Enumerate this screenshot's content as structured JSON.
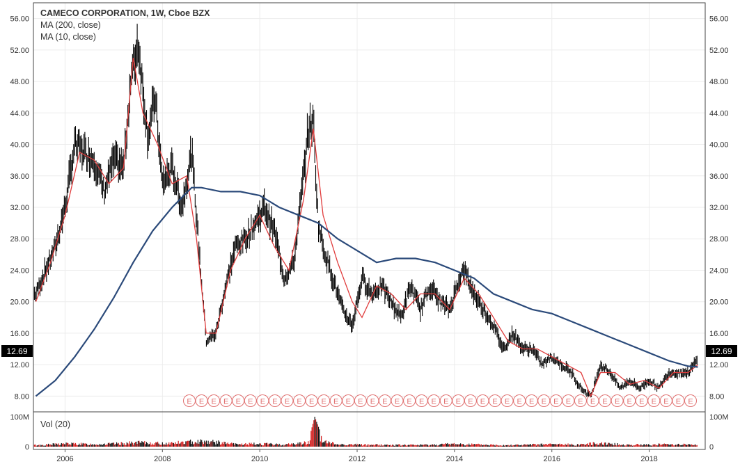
{
  "header": {
    "title": "CAMECO CORPORATION, 1W, Cboe BZX",
    "indicators": [
      "MA (200, close)",
      "MA (10, close)"
    ]
  },
  "price_badge": "12.69",
  "volume_pane": {
    "label": "Vol (20)",
    "ticks": [
      "100M",
      "0"
    ]
  },
  "earnings_marker_label": "E",
  "earnings_marker_count": 42,
  "colors": {
    "background": "#ffffff",
    "grid": "#ececec",
    "price_bars": "#000000",
    "ma200": "#2b4a7a",
    "ma10": "#e03b3b",
    "volume_up": "#111111",
    "volume_down": "#d11a1a",
    "earnings_marker": "#e07070",
    "badge_bg": "#000000",
    "badge_text": "#ffffff"
  },
  "chart_data": {
    "type": "line",
    "title": "CAMECO CORPORATION, 1W, Cboe BZX",
    "xlabel": "",
    "ylabel": "",
    "x_ticks": [
      "2006",
      "2008",
      "2010",
      "2012",
      "2014",
      "2016",
      "2018"
    ],
    "y_ticks": [
      "8.00",
      "12.00",
      "16.00",
      "20.00",
      "24.00",
      "28.00",
      "32.00",
      "36.00",
      "40.00",
      "44.00",
      "48.00",
      "52.00",
      "56.00"
    ],
    "ylim": [
      6,
      58
    ],
    "xlim": [
      2005.35,
      2019.15
    ],
    "grid": true,
    "last_price": 12.69,
    "series": [
      {
        "name": "Price",
        "style": "ohlc-bars",
        "x": [
          2005.4,
          2005.6,
          2005.8,
          2006.0,
          2006.2,
          2006.4,
          2006.6,
          2006.8,
          2007.0,
          2007.2,
          2007.35,
          2007.5,
          2007.7,
          2007.85,
          2008.0,
          2008.2,
          2008.4,
          2008.6,
          2008.75,
          2008.9,
          2009.1,
          2009.3,
          2009.5,
          2009.7,
          2009.9,
          2010.1,
          2010.3,
          2010.5,
          2010.7,
          2010.9,
          2011.0,
          2011.1,
          2011.2,
          2011.3,
          2011.5,
          2011.7,
          2011.9,
          2012.1,
          2012.3,
          2012.5,
          2012.7,
          2012.9,
          2013.1,
          2013.3,
          2013.5,
          2013.7,
          2013.9,
          2014.1,
          2014.2,
          2014.4,
          2014.6,
          2014.8,
          2015.0,
          2015.2,
          2015.4,
          2015.6,
          2015.8,
          2016.0,
          2016.2,
          2016.4,
          2016.6,
          2016.8,
          2017.0,
          2017.2,
          2017.4,
          2017.6,
          2017.8,
          2018.0,
          2018.2,
          2018.4,
          2018.6,
          2018.8,
          2019.0
        ],
        "values": [
          21,
          24,
          27,
          32,
          40,
          39,
          38,
          34,
          38,
          37,
          48,
          53,
          41,
          46,
          35,
          37,
          32,
          39,
          27,
          15,
          16,
          22,
          27,
          28,
          30,
          32,
          29,
          23,
          25,
          36,
          42,
          43,
          30,
          27,
          23,
          19,
          17,
          23,
          21,
          22,
          20,
          18,
          22,
          19,
          22,
          20,
          19,
          23,
          24,
          21,
          19,
          17,
          14,
          16,
          14,
          14,
          12,
          13,
          12,
          11,
          9,
          8,
          12,
          11,
          9,
          10,
          9,
          10,
          9,
          11,
          11,
          11,
          12.69
        ],
        "color": "#000000"
      },
      {
        "name": "MA (200, close)",
        "x": [
          2005.4,
          2005.8,
          2006.2,
          2006.6,
          2007.0,
          2007.4,
          2007.8,
          2008.2,
          2008.6,
          2008.8,
          2009.2,
          2009.6,
          2010.0,
          2010.4,
          2010.8,
          2011.2,
          2011.6,
          2012.0,
          2012.4,
          2012.8,
          2013.2,
          2013.6,
          2014.0,
          2014.4,
          2014.8,
          2015.2,
          2015.6,
          2016.0,
          2016.4,
          2016.8,
          2017.2,
          2017.6,
          2018.0,
          2018.4,
          2018.8,
          2019.0
        ],
        "values": [
          8,
          10,
          13,
          16.5,
          20.5,
          25,
          29,
          32,
          34.5,
          34.5,
          34,
          34,
          33.5,
          32,
          31,
          30,
          28,
          26.5,
          25,
          25.5,
          25.5,
          25,
          24,
          23,
          21,
          20,
          19,
          18.5,
          17.5,
          16.5,
          15.5,
          14.5,
          13.5,
          12.5,
          11.8,
          11.7
        ],
        "color": "#2b4a7a"
      },
      {
        "name": "MA (10, close)",
        "x": [
          2005.4,
          2005.7,
          2006.0,
          2006.3,
          2006.6,
          2006.9,
          2007.2,
          2007.4,
          2007.6,
          2007.9,
          2008.2,
          2008.5,
          2008.7,
          2008.9,
          2009.1,
          2009.4,
          2009.7,
          2010.0,
          2010.3,
          2010.6,
          2010.9,
          2011.1,
          2011.3,
          2011.6,
          2011.9,
          2012.1,
          2012.4,
          2012.7,
          2013.0,
          2013.3,
          2013.6,
          2013.9,
          2014.2,
          2014.5,
          2014.8,
          2015.1,
          2015.4,
          2015.7,
          2016.0,
          2016.3,
          2016.6,
          2016.8,
          2017.0,
          2017.3,
          2017.6,
          2017.9,
          2018.2,
          2018.5,
          2018.8,
          2019.0
        ],
        "values": [
          20,
          25,
          31,
          39,
          38,
          35,
          37,
          51,
          44,
          40,
          35,
          36,
          28,
          16,
          16,
          24,
          28,
          31,
          27,
          24,
          33,
          42,
          31,
          25,
          20,
          18,
          22,
          21,
          19,
          21,
          21,
          19,
          23,
          21,
          18,
          15,
          14,
          14,
          13,
          12,
          11,
          8,
          11,
          11,
          9.5,
          10,
          9,
          11,
          11,
          12
        ],
        "color": "#e03b3b"
      },
      {
        "name": "Vol (20)",
        "style": "volume-bars",
        "x": [
          2005.5,
          2006.0,
          2006.5,
          2007.0,
          2007.5,
          2008.0,
          2008.5,
          2008.7,
          2009.0,
          2009.5,
          2010.0,
          2010.5,
          2011.0,
          2011.13,
          2011.3,
          2011.6,
          2012.0,
          2012.5,
          2013.0,
          2013.5,
          2014.0,
          2014.5,
          2015.0,
          2015.5,
          2016.0,
          2016.5,
          2017.0,
          2017.5,
          2018.0,
          2018.5,
          2019.0
        ],
        "values": [
          8,
          15,
          12,
          14,
          20,
          16,
          22,
          28,
          25,
          12,
          14,
          10,
          20,
          100,
          25,
          12,
          10,
          9,
          8,
          9,
          14,
          10,
          8,
          9,
          12,
          10,
          18,
          9,
          10,
          12,
          9
        ],
        "color": "#d11a1a"
      }
    ]
  }
}
